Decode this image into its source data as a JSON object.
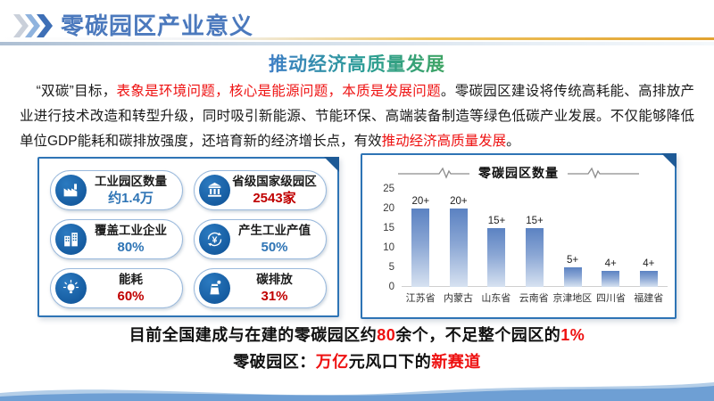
{
  "header": {
    "title": "零碳园区产业意义"
  },
  "subtitle": "推动经济高质量发展",
  "paragraph": {
    "segments": [
      {
        "t": "“双碳”目标，",
        "c": "black"
      },
      {
        "t": "表象是环境问题，核心是能源问题，本质是发展问题",
        "c": "red"
      },
      {
        "t": "。零碳园区建设将传统高耗能、高排放产业进行技术改造和转型升级，同时吸引新能源、节能环保、高端装备制造等绿色低碳产业发展。不仅能够降低单位GDP能耗和碳排放强度，还培育新的经济增长点，有效",
        "c": "black"
      },
      {
        "t": "推动经济高质量发展",
        "c": "red"
      },
      {
        "t": "。",
        "c": "black"
      }
    ]
  },
  "stats": {
    "items": [
      {
        "icon": "factory-icon",
        "label": "工业园区数量",
        "value": "约1.4万",
        "value_color": "blue"
      },
      {
        "icon": "government-building-icon",
        "label": "省级国家级园区",
        "value": "2543家",
        "value_color": "red"
      },
      {
        "icon": "enterprise-building-icon",
        "label": "覆盖工业企业",
        "value": "80%",
        "value_color": "blue"
      },
      {
        "icon": "yen-circulation-icon",
        "label": "产生工业产值",
        "value": "50%",
        "value_color": "blue"
      },
      {
        "icon": "energy-bulb-icon",
        "label": "能耗",
        "value": "60%",
        "value_color": "red"
      },
      {
        "icon": "carbon-chimney-icon",
        "label": "碳排放",
        "value": "31%",
        "value_color": "red"
      }
    ]
  },
  "chart_data": {
    "type": "bar",
    "title": "零碳园区数量",
    "categories": [
      "江苏省",
      "内蒙古",
      "山东省",
      "云南省",
      "京津地区",
      "四川省",
      "福建省"
    ],
    "values": [
      20,
      20,
      15,
      15,
      5,
      4,
      4
    ],
    "bar_labels": [
      "20+",
      "20+",
      "15+",
      "15+",
      "5+",
      "4+",
      "4+"
    ],
    "yticks": [
      0,
      5,
      10,
      15,
      20,
      25
    ],
    "ylim": [
      0,
      25
    ],
    "xlabel": "",
    "ylabel": "",
    "grid": false,
    "legend": "none"
  },
  "footer": {
    "line1": [
      {
        "t": "目前全国建成与在建的零碳园区约",
        "c": "black"
      },
      {
        "t": "80",
        "c": "red"
      },
      {
        "t": "余个，不足整个园区的",
        "c": "black"
      },
      {
        "t": "1%",
        "c": "red"
      }
    ],
    "line2": [
      {
        "t": "零破园区：",
        "c": "black"
      },
      {
        "t": "万亿",
        "c": "red"
      },
      {
        "t": "元风口下的",
        "c": "black"
      },
      {
        "t": "新赛道",
        "c": "red"
      }
    ]
  },
  "colors": {
    "brand_blue": "#2E74B5",
    "title_blue": "#4B79BD",
    "accent_gold": "#E2A22F",
    "highlight_red": "#EE1111",
    "value_red": "#C00000",
    "bar_top": "#5B82C2",
    "bar_bottom": "#D7E2F1"
  }
}
